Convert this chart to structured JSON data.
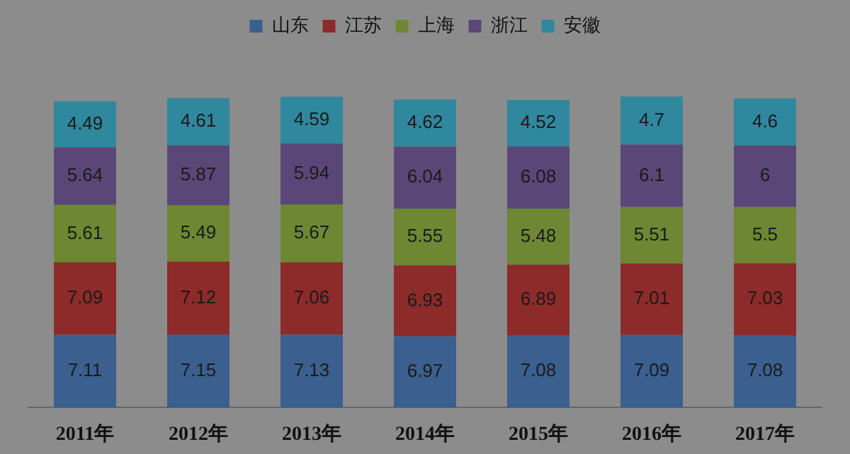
{
  "chart_data": {
    "type": "bar",
    "stacked": true,
    "data_labels": true,
    "legend": "top",
    "categories": [
      "2011年",
      "2012年",
      "2013年",
      "2014年",
      "2015年",
      "2016年",
      "2017年"
    ],
    "series": [
      {
        "name": "山东",
        "color": "#3b5f8e",
        "values": [
          7.11,
          7.15,
          7.13,
          6.97,
          7.08,
          7.09,
          7.08
        ]
      },
      {
        "name": "江苏",
        "color": "#8c2b2a",
        "values": [
          7.09,
          7.12,
          7.06,
          6.93,
          6.89,
          7.01,
          7.03
        ]
      },
      {
        "name": "上海",
        "color": "#6d8733",
        "values": [
          5.61,
          5.49,
          5.67,
          5.55,
          5.48,
          5.51,
          5.5
        ]
      },
      {
        "name": "浙江",
        "color": "#5a4777",
        "values": [
          5.64,
          5.87,
          5.94,
          6.04,
          6.08,
          6.1,
          6
        ]
      },
      {
        "name": "安徽",
        "color": "#2f889e",
        "values": [
          4.49,
          4.61,
          4.59,
          4.62,
          4.52,
          4.7,
          4.6
        ]
      }
    ]
  }
}
